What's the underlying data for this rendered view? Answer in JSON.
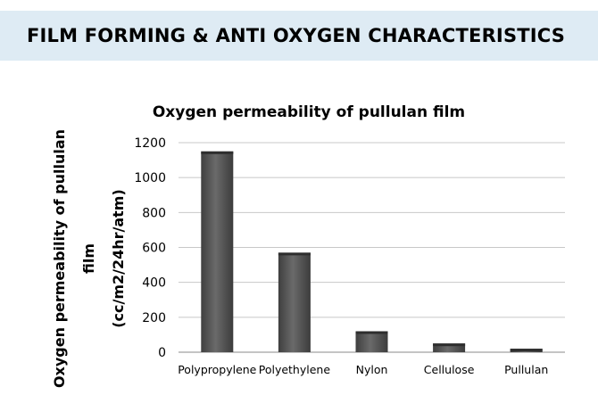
{
  "slide": {
    "heading": "FILM FORMING & ANTI OXYGEN CHARACTERISTICS"
  },
  "chart_data": {
    "type": "bar",
    "title": "Oxygen permeability of pullulan film",
    "ylabel_lines": [
      "Oxygen permeability of pullulan",
      "film",
      "(cc/m2/24hr/atm)"
    ],
    "xlabel": "",
    "categories": [
      "Polypropylene",
      "Polyethylene",
      "Nylon",
      "Cellulose",
      "Pullulan"
    ],
    "values": [
      1150,
      570,
      120,
      50,
      20
    ],
    "ylim": [
      0,
      1200
    ],
    "yticks": [
      0,
      200,
      400,
      600,
      800,
      1000,
      1200
    ],
    "grid": true,
    "legend": "none",
    "bar_color": "#555555"
  }
}
